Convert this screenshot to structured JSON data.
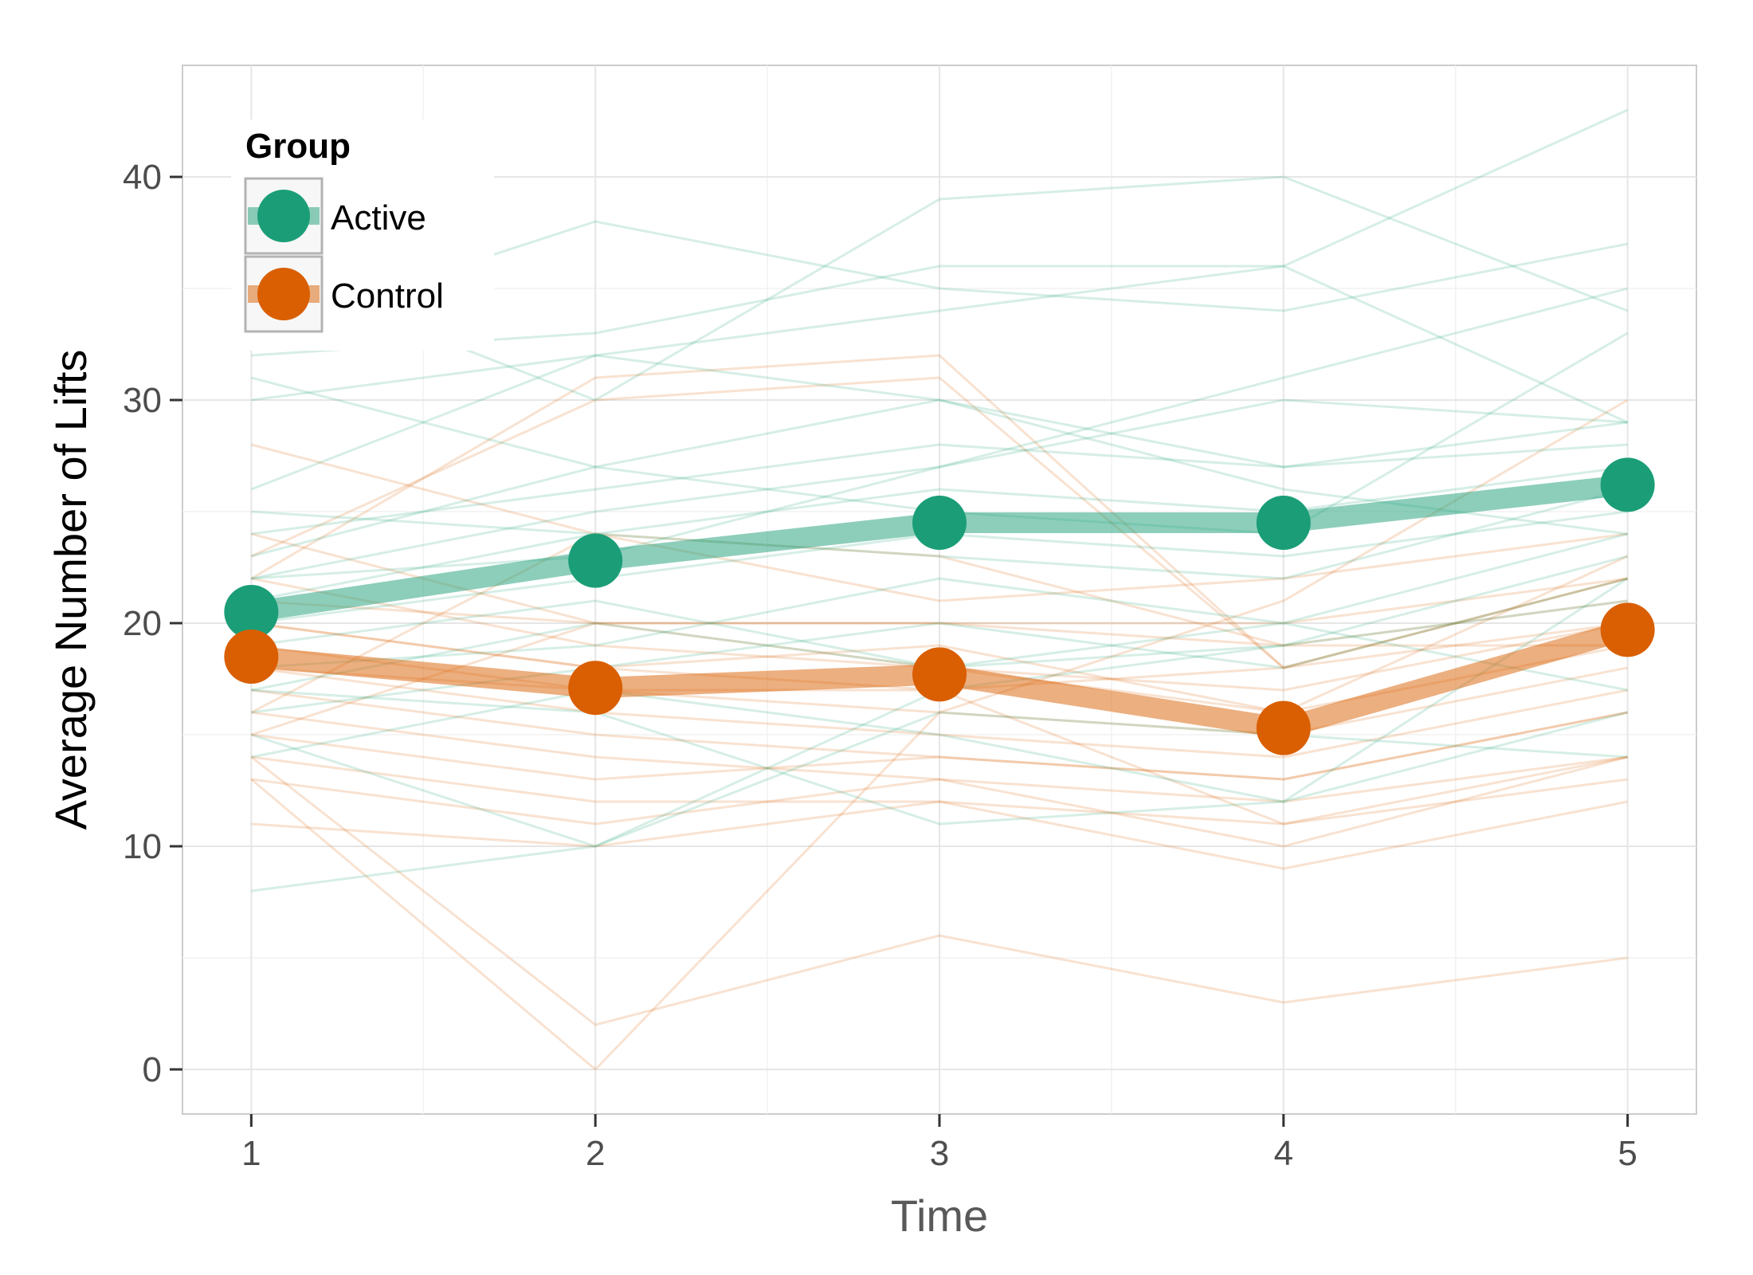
{
  "chart_data": {
    "type": "line",
    "xlabel": "Time",
    "ylabel": "Average Number of Lifts",
    "x": [
      1,
      2,
      3,
      4,
      5
    ],
    "xlim": [
      0.8,
      5.2
    ],
    "ylim": [
      -2,
      45
    ],
    "x_ticks": [
      "1",
      "2",
      "3",
      "4",
      "5"
    ],
    "y_ticks": [
      "0",
      "10",
      "20",
      "30",
      "40"
    ],
    "y_tick_values": [
      0,
      10,
      20,
      30,
      40
    ],
    "grid": true,
    "legend": {
      "title": "Group",
      "position": "top-left",
      "entries": [
        "Active",
        "Control"
      ]
    },
    "colors": {
      "Active": "#1b9e77",
      "Control": "#d95f02"
    },
    "series": [
      {
        "name": "Active",
        "values": [
          20.5,
          22.8,
          24.5,
          24.5,
          26.2
        ]
      },
      {
        "name": "Control",
        "values": [
          18.5,
          17.1,
          17.7,
          15.3,
          19.7
        ]
      }
    ],
    "individual_lines": {
      "Active": [
        [
          8,
          10,
          16,
          15,
          14
        ],
        [
          14,
          17,
          15,
          12,
          16
        ],
        [
          16,
          18,
          20,
          18,
          22
        ],
        [
          17,
          20,
          18,
          19,
          21
        ],
        [
          18,
          19,
          22,
          20,
          24
        ],
        [
          20,
          22,
          24,
          23,
          25
        ],
        [
          21,
          24,
          26,
          25,
          27
        ],
        [
          22,
          25,
          27,
          30,
          29
        ],
        [
          23,
          27,
          30,
          27,
          29
        ],
        [
          24,
          26,
          28,
          27,
          28
        ],
        [
          25,
          24,
          23,
          22,
          26
        ],
        [
          26,
          32,
          30,
          26,
          24
        ],
        [
          30,
          32,
          34,
          36,
          43
        ],
        [
          32,
          33,
          36,
          36,
          29
        ],
        [
          33,
          38,
          35,
          34,
          37
        ],
        [
          36,
          30,
          39,
          40,
          34
        ],
        [
          31,
          27,
          25,
          24,
          33
        ],
        [
          19,
          21,
          18,
          20,
          17
        ],
        [
          17,
          16,
          11,
          12,
          22
        ],
        [
          22,
          23,
          27,
          31,
          35
        ],
        [
          15,
          10,
          17,
          19,
          23
        ]
      ],
      "Control": [
        [
          28,
          24,
          21,
          22,
          24
        ],
        [
          24,
          20,
          18,
          17,
          20
        ],
        [
          22,
          19,
          18,
          16,
          19
        ],
        [
          21,
          20,
          20,
          19,
          21
        ],
        [
          20,
          18,
          17,
          18,
          22
        ],
        [
          19,
          17,
          16,
          15,
          18
        ],
        [
          18,
          16,
          15,
          14,
          17
        ],
        [
          17,
          15,
          14,
          13,
          16
        ],
        [
          16,
          14,
          13,
          12,
          14
        ],
        [
          15,
          13,
          14,
          13,
          16
        ],
        [
          14,
          12,
          12,
          11,
          13
        ],
        [
          13,
          11,
          13,
          10,
          14
        ],
        [
          11,
          10,
          12,
          9,
          12
        ],
        [
          14,
          2,
          6,
          3,
          5
        ],
        [
          13,
          0,
          16,
          21,
          30
        ],
        [
          23,
          30,
          31,
          18,
          20
        ],
        [
          22,
          31,
          32,
          18,
          22
        ],
        [
          16,
          24,
          23,
          19,
          19
        ],
        [
          15,
          20,
          20,
          20,
          22
        ],
        [
          18,
          17,
          17,
          11,
          14
        ],
        [
          20,
          18,
          19,
          16,
          23
        ]
      ]
    }
  }
}
